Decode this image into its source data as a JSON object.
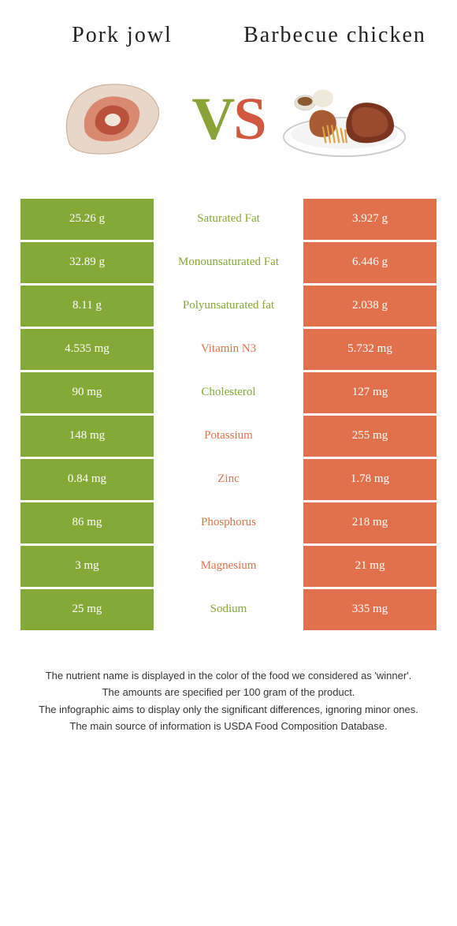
{
  "header": {
    "left_title": "Pork jowl",
    "right_title": "Barbecue chicken",
    "vs_v": "V",
    "vs_s": "S"
  },
  "colors": {
    "green": "#85a936",
    "orange": "#e1714c"
  },
  "rows": [
    {
      "left": "25.26 g",
      "label": "Saturated Fat",
      "right": "3.927 g",
      "winner": "green"
    },
    {
      "left": "32.89 g",
      "label": "Monounsaturated Fat",
      "right": "6.446 g",
      "winner": "green"
    },
    {
      "left": "8.11 g",
      "label": "Polyunsaturated fat",
      "right": "2.038 g",
      "winner": "green"
    },
    {
      "left": "4.535 mg",
      "label": "Vitamin N3",
      "right": "5.732 mg",
      "winner": "orange"
    },
    {
      "left": "90 mg",
      "label": "Cholesterol",
      "right": "127 mg",
      "winner": "green"
    },
    {
      "left": "148 mg",
      "label": "Potassium",
      "right": "255 mg",
      "winner": "orange"
    },
    {
      "left": "0.84 mg",
      "label": "Zinc",
      "right": "1.78 mg",
      "winner": "orange"
    },
    {
      "left": "86 mg",
      "label": "Phosphorus",
      "right": "218 mg",
      "winner": "orange"
    },
    {
      "left": "3 mg",
      "label": "Magnesium",
      "right": "21 mg",
      "winner": "orange"
    },
    {
      "left": "25 mg",
      "label": "Sodium",
      "right": "335 mg",
      "winner": "green"
    }
  ],
  "footer": {
    "l1": "The nutrient name is displayed in the color of the food we considered as 'winner'.",
    "l2": "The amounts are specified per 100 gram of the product.",
    "l3": "The infographic aims to display only the significant differences, ignoring minor ones.",
    "l4": "The main source of information is USDA Food Composition Database."
  }
}
